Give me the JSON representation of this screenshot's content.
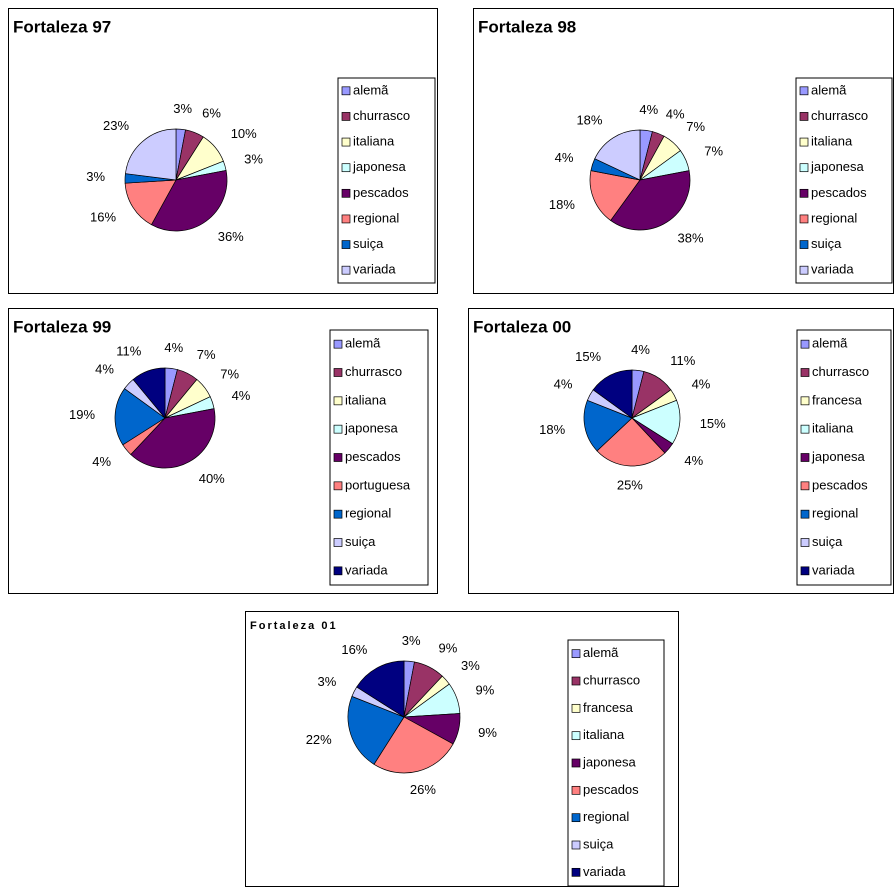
{
  "chart_data": [
    {
      "type": "pie",
      "title": "Fortaleza 97",
      "categories": [
        "alemã",
        "churrasco",
        "italiana",
        "japonesa",
        "pescados",
        "regional",
        "suiça",
        "variada"
      ],
      "values": [
        3,
        6,
        10,
        3,
        36,
        16,
        3,
        23
      ],
      "value_labels": [
        "3%",
        "6%",
        "10%",
        "3%",
        "36%",
        "16%",
        "3%",
        "23%"
      ],
      "colors": [
        "#9999FF",
        "#993366",
        "#FFFFCC",
        "#CCFFFF",
        "#660066",
        "#FF8080",
        "#0066CC",
        "#CCCCFF"
      ]
    },
    {
      "type": "pie",
      "title": "Fortaleza 98",
      "categories": [
        "alemã",
        "churrasco",
        "italiana",
        "japonesa",
        "pescados",
        "regional",
        "suiça",
        "variada"
      ],
      "values": [
        4,
        4,
        7,
        7,
        38,
        18,
        4,
        18
      ],
      "value_labels": [
        "4%",
        "4%",
        "7%",
        "7%",
        "38%",
        "18%",
        "4%",
        "18%"
      ],
      "colors": [
        "#9999FF",
        "#993366",
        "#FFFFCC",
        "#CCFFFF",
        "#660066",
        "#FF8080",
        "#0066CC",
        "#CCCCFF"
      ]
    },
    {
      "type": "pie",
      "title": "Fortaleza 99",
      "categories": [
        "alemã",
        "churrasco",
        "italiana",
        "japonesa",
        "pescados",
        "portuguesa",
        "regional",
        "suiça",
        "variada"
      ],
      "values": [
        4,
        7,
        7,
        4,
        40,
        4,
        19,
        4,
        11
      ],
      "value_labels": [
        "4%",
        "7%",
        "7%",
        "4%",
        "40%",
        "4%",
        "19%",
        "4%",
        "11%"
      ],
      "colors": [
        "#9999FF",
        "#993366",
        "#FFFFCC",
        "#CCFFFF",
        "#660066",
        "#FF8080",
        "#0066CC",
        "#CCCCFF",
        "#000080"
      ]
    },
    {
      "type": "pie",
      "title": "Fortaleza 00",
      "categories": [
        "alemã",
        "churrasco",
        "francesa",
        "italiana",
        "japonesa",
        "pescados",
        "regional",
        "suiça",
        "variada"
      ],
      "values": [
        4,
        11,
        4,
        15,
        4,
        25,
        18,
        4,
        15
      ],
      "value_labels": [
        "4%",
        "11%",
        "4%",
        "15%",
        "4%",
        "25%",
        "18%",
        "4%",
        "15%"
      ],
      "colors": [
        "#9999FF",
        "#993366",
        "#FFFFCC",
        "#CCFFFF",
        "#660066",
        "#FF8080",
        "#0066CC",
        "#CCCCFF",
        "#000080"
      ]
    },
    {
      "type": "pie",
      "title": "Fortaleza 01",
      "categories": [
        "alemã",
        "churrasco",
        "francesa",
        "italiana",
        "japonesa",
        "pescados",
        "regional",
        "suiça",
        "variada"
      ],
      "values": [
        3,
        9,
        3,
        9,
        9,
        26,
        22,
        3,
        16
      ],
      "value_labels": [
        "3%",
        "9%",
        "3%",
        "9%",
        "9%",
        "26%",
        "22%",
        "3%",
        "16%"
      ],
      "colors": [
        "#9999FF",
        "#993366",
        "#FFFFCC",
        "#CCFFFF",
        "#660066",
        "#FF8080",
        "#0066CC",
        "#CCCCFF",
        "#000080"
      ]
    }
  ]
}
